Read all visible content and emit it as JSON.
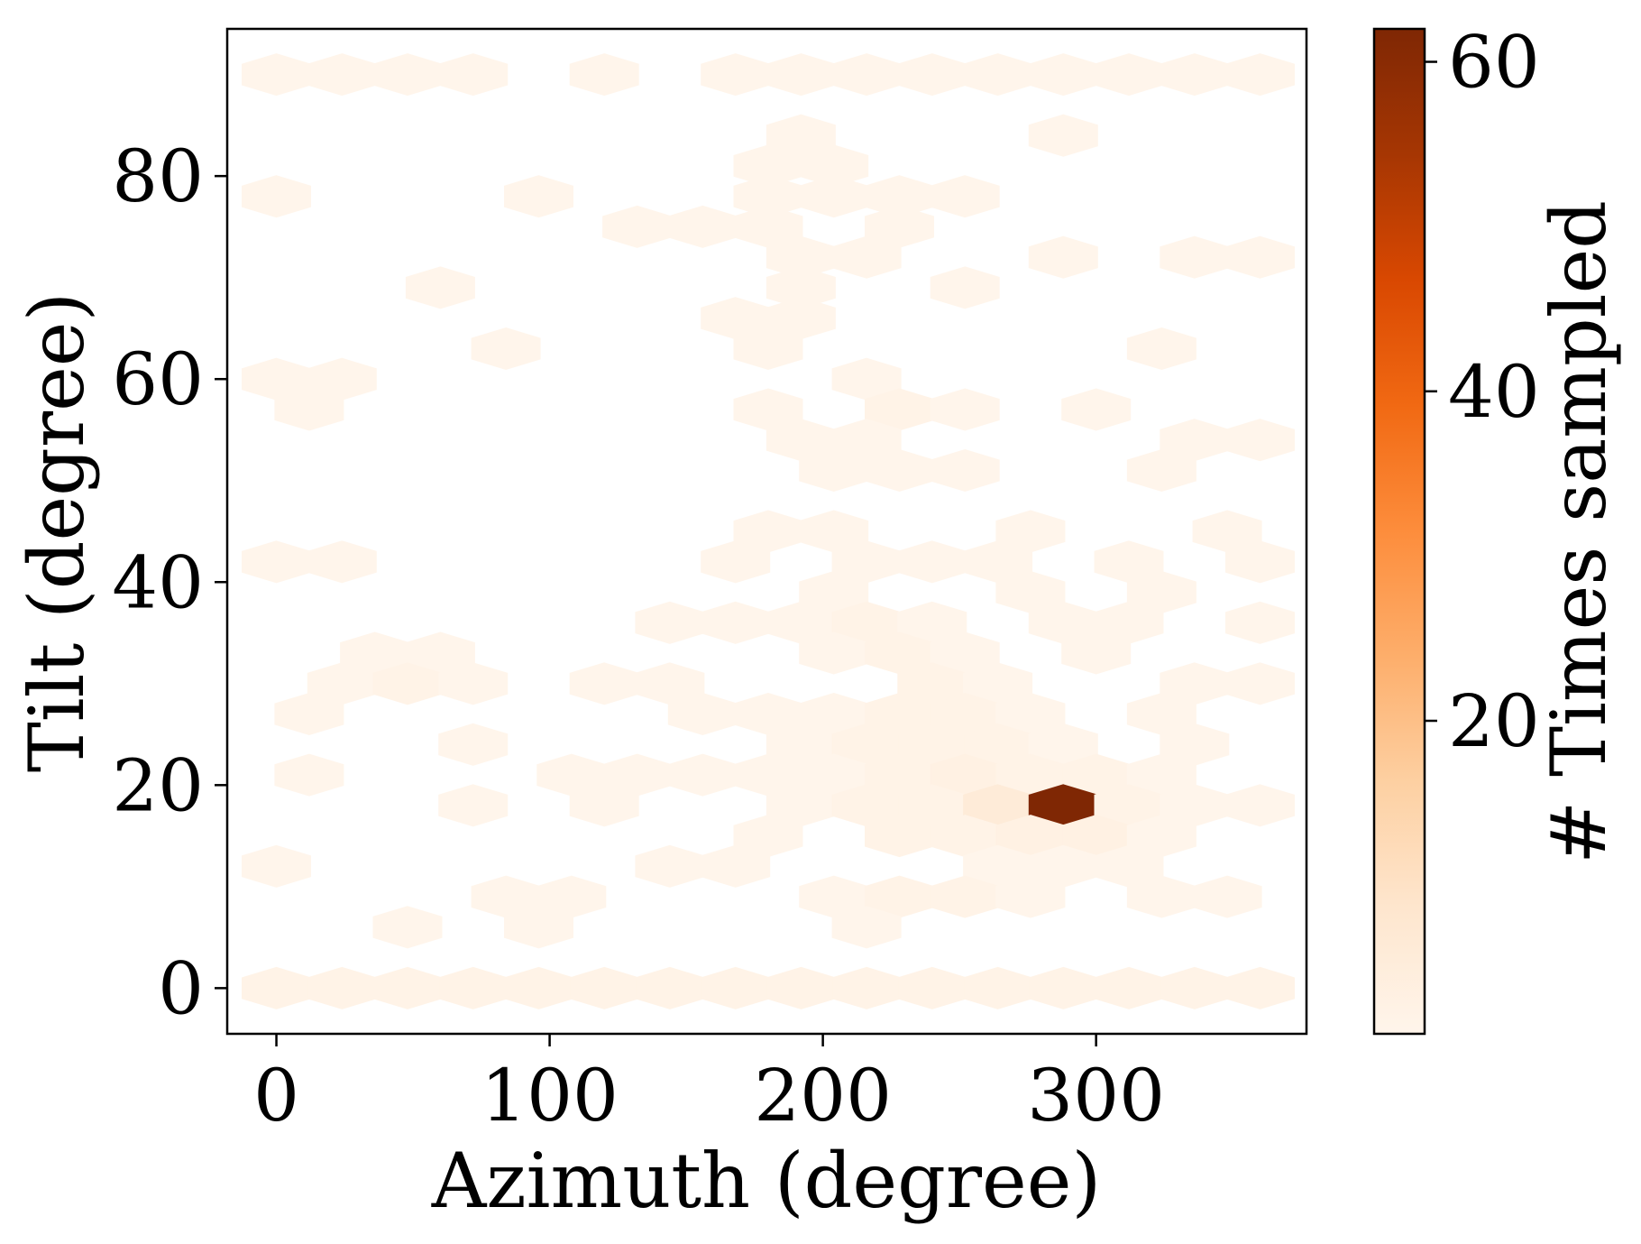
{
  "chart_data": {
    "type": "heatmap",
    "subtype": "hexbin",
    "title": "",
    "xlabel": "Azimuth (degree)",
    "ylabel": "Tilt (degree)",
    "xlim": [
      -18,
      377
    ],
    "ylim": [
      -4.5,
      94.5
    ],
    "xticks": [
      0,
      100,
      200,
      300
    ],
    "yticks": [
      0,
      20,
      40,
      60,
      80
    ],
    "grid": false,
    "colormap": "Oranges",
    "colorbar": {
      "label": "# Times sampled",
      "ticks": [
        20,
        40,
        60
      ],
      "min": 1,
      "max": 62
    },
    "bins": [
      {
        "x": 0,
        "y": 90,
        "count": 1
      },
      {
        "x": 24,
        "y": 90,
        "count": 1
      },
      {
        "x": 48,
        "y": 90,
        "count": 1
      },
      {
        "x": 72,
        "y": 90,
        "count": 1
      },
      {
        "x": 120,
        "y": 90,
        "count": 1
      },
      {
        "x": 168,
        "y": 90,
        "count": 1
      },
      {
        "x": 192,
        "y": 90,
        "count": 1
      },
      {
        "x": 216,
        "y": 90,
        "count": 1
      },
      {
        "x": 240,
        "y": 90,
        "count": 1
      },
      {
        "x": 264,
        "y": 90,
        "count": 1
      },
      {
        "x": 288,
        "y": 90,
        "count": 1
      },
      {
        "x": 312,
        "y": 90,
        "count": 1
      },
      {
        "x": 336,
        "y": 90,
        "count": 1
      },
      {
        "x": 360,
        "y": 90,
        "count": 1
      },
      {
        "x": 192,
        "y": 84,
        "count": 1
      },
      {
        "x": 288,
        "y": 84,
        "count": 1
      },
      {
        "x": 0,
        "y": 78,
        "count": 1
      },
      {
        "x": 96,
        "y": 78,
        "count": 1
      },
      {
        "x": 180,
        "y": 81,
        "count": 1
      },
      {
        "x": 204,
        "y": 81,
        "count": 1
      },
      {
        "x": 204,
        "y": 78,
        "count": 1
      },
      {
        "x": 228,
        "y": 78,
        "count": 1
      },
      {
        "x": 252,
        "y": 78,
        "count": 1
      },
      {
        "x": 180,
        "y": 78,
        "count": 1
      },
      {
        "x": 132,
        "y": 75,
        "count": 1
      },
      {
        "x": 156,
        "y": 75,
        "count": 1
      },
      {
        "x": 180,
        "y": 75,
        "count": 1
      },
      {
        "x": 228,
        "y": 75,
        "count": 1
      },
      {
        "x": 192,
        "y": 72,
        "count": 1
      },
      {
        "x": 216,
        "y": 72,
        "count": 1
      },
      {
        "x": 288,
        "y": 72,
        "count": 1
      },
      {
        "x": 336,
        "y": 72,
        "count": 1
      },
      {
        "x": 360,
        "y": 72,
        "count": 1
      },
      {
        "x": 60,
        "y": 69,
        "count": 1
      },
      {
        "x": 192,
        "y": 69,
        "count": 1
      },
      {
        "x": 252,
        "y": 69,
        "count": 1
      },
      {
        "x": 168,
        "y": 66,
        "count": 1
      },
      {
        "x": 192,
        "y": 66,
        "count": 1
      },
      {
        "x": 84,
        "y": 63,
        "count": 1
      },
      {
        "x": 180,
        "y": 63,
        "count": 1
      },
      {
        "x": 324,
        "y": 63,
        "count": 1
      },
      {
        "x": 0,
        "y": 60,
        "count": 1
      },
      {
        "x": 24,
        "y": 60,
        "count": 1
      },
      {
        "x": 12,
        "y": 57,
        "count": 1
      },
      {
        "x": 216,
        "y": 60,
        "count": 1
      },
      {
        "x": 180,
        "y": 57,
        "count": 1
      },
      {
        "x": 228,
        "y": 57,
        "count": 2
      },
      {
        "x": 252,
        "y": 57,
        "count": 1
      },
      {
        "x": 300,
        "y": 57,
        "count": 1
      },
      {
        "x": 192,
        "y": 54,
        "count": 1
      },
      {
        "x": 216,
        "y": 54,
        "count": 1
      },
      {
        "x": 336,
        "y": 54,
        "count": 1
      },
      {
        "x": 360,
        "y": 54,
        "count": 1
      },
      {
        "x": 204,
        "y": 51,
        "count": 1
      },
      {
        "x": 228,
        "y": 51,
        "count": 1
      },
      {
        "x": 252,
        "y": 51,
        "count": 1
      },
      {
        "x": 324,
        "y": 51,
        "count": 1
      },
      {
        "x": 180,
        "y": 45,
        "count": 1
      },
      {
        "x": 204,
        "y": 45,
        "count": 1
      },
      {
        "x": 276,
        "y": 45,
        "count": 1
      },
      {
        "x": 348,
        "y": 45,
        "count": 1
      },
      {
        "x": 0,
        "y": 42,
        "count": 1
      },
      {
        "x": 24,
        "y": 42,
        "count": 1
      },
      {
        "x": 168,
        "y": 42,
        "count": 1
      },
      {
        "x": 216,
        "y": 42,
        "count": 1
      },
      {
        "x": 240,
        "y": 42,
        "count": 1
      },
      {
        "x": 264,
        "y": 42,
        "count": 1
      },
      {
        "x": 312,
        "y": 42,
        "count": 1
      },
      {
        "x": 360,
        "y": 42,
        "count": 1
      },
      {
        "x": 204,
        "y": 39,
        "count": 1
      },
      {
        "x": 276,
        "y": 39,
        "count": 1
      },
      {
        "x": 324,
        "y": 39,
        "count": 1
      },
      {
        "x": 144,
        "y": 36,
        "count": 1
      },
      {
        "x": 168,
        "y": 36,
        "count": 1
      },
      {
        "x": 192,
        "y": 36,
        "count": 1
      },
      {
        "x": 216,
        "y": 36,
        "count": 2
      },
      {
        "x": 240,
        "y": 36,
        "count": 1
      },
      {
        "x": 288,
        "y": 36,
        "count": 1
      },
      {
        "x": 312,
        "y": 36,
        "count": 1
      },
      {
        "x": 360,
        "y": 36,
        "count": 1
      },
      {
        "x": 36,
        "y": 33,
        "count": 1
      },
      {
        "x": 60,
        "y": 33,
        "count": 1
      },
      {
        "x": 204,
        "y": 33,
        "count": 1
      },
      {
        "x": 228,
        "y": 33,
        "count": 2
      },
      {
        "x": 252,
        "y": 33,
        "count": 1
      },
      {
        "x": 300,
        "y": 33,
        "count": 1
      },
      {
        "x": 24,
        "y": 30,
        "count": 1
      },
      {
        "x": 48,
        "y": 30,
        "count": 2
      },
      {
        "x": 72,
        "y": 30,
        "count": 1
      },
      {
        "x": 120,
        "y": 30,
        "count": 1
      },
      {
        "x": 144,
        "y": 30,
        "count": 1
      },
      {
        "x": 240,
        "y": 30,
        "count": 2
      },
      {
        "x": 264,
        "y": 30,
        "count": 1
      },
      {
        "x": 336,
        "y": 30,
        "count": 1
      },
      {
        "x": 360,
        "y": 30,
        "count": 1
      },
      {
        "x": 12,
        "y": 27,
        "count": 1
      },
      {
        "x": 156,
        "y": 27,
        "count": 1
      },
      {
        "x": 180,
        "y": 27,
        "count": 1
      },
      {
        "x": 204,
        "y": 27,
        "count": 1
      },
      {
        "x": 228,
        "y": 27,
        "count": 2
      },
      {
        "x": 252,
        "y": 27,
        "count": 2
      },
      {
        "x": 276,
        "y": 27,
        "count": 1
      },
      {
        "x": 324,
        "y": 27,
        "count": 1
      },
      {
        "x": 72,
        "y": 24,
        "count": 1
      },
      {
        "x": 192,
        "y": 24,
        "count": 1
      },
      {
        "x": 216,
        "y": 24,
        "count": 2
      },
      {
        "x": 240,
        "y": 24,
        "count": 2
      },
      {
        "x": 264,
        "y": 24,
        "count": 2
      },
      {
        "x": 288,
        "y": 24,
        "count": 1
      },
      {
        "x": 336,
        "y": 24,
        "count": 1
      },
      {
        "x": 12,
        "y": 21,
        "count": 1
      },
      {
        "x": 108,
        "y": 21,
        "count": 1
      },
      {
        "x": 132,
        "y": 21,
        "count": 1
      },
      {
        "x": 156,
        "y": 21,
        "count": 1
      },
      {
        "x": 180,
        "y": 21,
        "count": 1
      },
      {
        "x": 204,
        "y": 21,
        "count": 1
      },
      {
        "x": 228,
        "y": 21,
        "count": 2
      },
      {
        "x": 252,
        "y": 21,
        "count": 3
      },
      {
        "x": 276,
        "y": 21,
        "count": 2
      },
      {
        "x": 300,
        "y": 21,
        "count": 2
      },
      {
        "x": 324,
        "y": 21,
        "count": 1
      },
      {
        "x": 72,
        "y": 18,
        "count": 1
      },
      {
        "x": 120,
        "y": 18,
        "count": 1
      },
      {
        "x": 192,
        "y": 18,
        "count": 1
      },
      {
        "x": 216,
        "y": 18,
        "count": 2
      },
      {
        "x": 240,
        "y": 18,
        "count": 2
      },
      {
        "x": 264,
        "y": 18,
        "count": 6
      },
      {
        "x": 288,
        "y": 18,
        "count": 62
      },
      {
        "x": 312,
        "y": 18,
        "count": 2
      },
      {
        "x": 336,
        "y": 18,
        "count": 1
      },
      {
        "x": 360,
        "y": 18,
        "count": 1
      },
      {
        "x": 180,
        "y": 15,
        "count": 1
      },
      {
        "x": 228,
        "y": 15,
        "count": 2
      },
      {
        "x": 252,
        "y": 15,
        "count": 2
      },
      {
        "x": 276,
        "y": 15,
        "count": 3
      },
      {
        "x": 300,
        "y": 15,
        "count": 3
      },
      {
        "x": 324,
        "y": 15,
        "count": 1
      },
      {
        "x": 0,
        "y": 12,
        "count": 1
      },
      {
        "x": 144,
        "y": 12,
        "count": 1
      },
      {
        "x": 168,
        "y": 12,
        "count": 1
      },
      {
        "x": 264,
        "y": 12,
        "count": 1
      },
      {
        "x": 288,
        "y": 12,
        "count": 1
      },
      {
        "x": 312,
        "y": 12,
        "count": 1
      },
      {
        "x": 84,
        "y": 9,
        "count": 1
      },
      {
        "x": 108,
        "y": 9,
        "count": 1
      },
      {
        "x": 204,
        "y": 9,
        "count": 1
      },
      {
        "x": 228,
        "y": 9,
        "count": 2
      },
      {
        "x": 252,
        "y": 9,
        "count": 2
      },
      {
        "x": 276,
        "y": 9,
        "count": 1
      },
      {
        "x": 324,
        "y": 9,
        "count": 1
      },
      {
        "x": 348,
        "y": 9,
        "count": 1
      },
      {
        "x": 48,
        "y": 6,
        "count": 1
      },
      {
        "x": 96,
        "y": 6,
        "count": 1
      },
      {
        "x": 216,
        "y": 6,
        "count": 1
      },
      {
        "x": 0,
        "y": 0,
        "count": 2
      },
      {
        "x": 24,
        "y": 0,
        "count": 2
      },
      {
        "x": 48,
        "y": 0,
        "count": 2
      },
      {
        "x": 72,
        "y": 0,
        "count": 2
      },
      {
        "x": 96,
        "y": 0,
        "count": 2
      },
      {
        "x": 120,
        "y": 0,
        "count": 2
      },
      {
        "x": 144,
        "y": 0,
        "count": 2
      },
      {
        "x": 168,
        "y": 0,
        "count": 2
      },
      {
        "x": 192,
        "y": 0,
        "count": 2
      },
      {
        "x": 216,
        "y": 0,
        "count": 2
      },
      {
        "x": 240,
        "y": 0,
        "count": 2
      },
      {
        "x": 264,
        "y": 0,
        "count": 2
      },
      {
        "x": 288,
        "y": 0,
        "count": 2
      },
      {
        "x": 312,
        "y": 0,
        "count": 2
      },
      {
        "x": 336,
        "y": 0,
        "count": 2
      },
      {
        "x": 360,
        "y": 0,
        "count": 2
      }
    ]
  }
}
